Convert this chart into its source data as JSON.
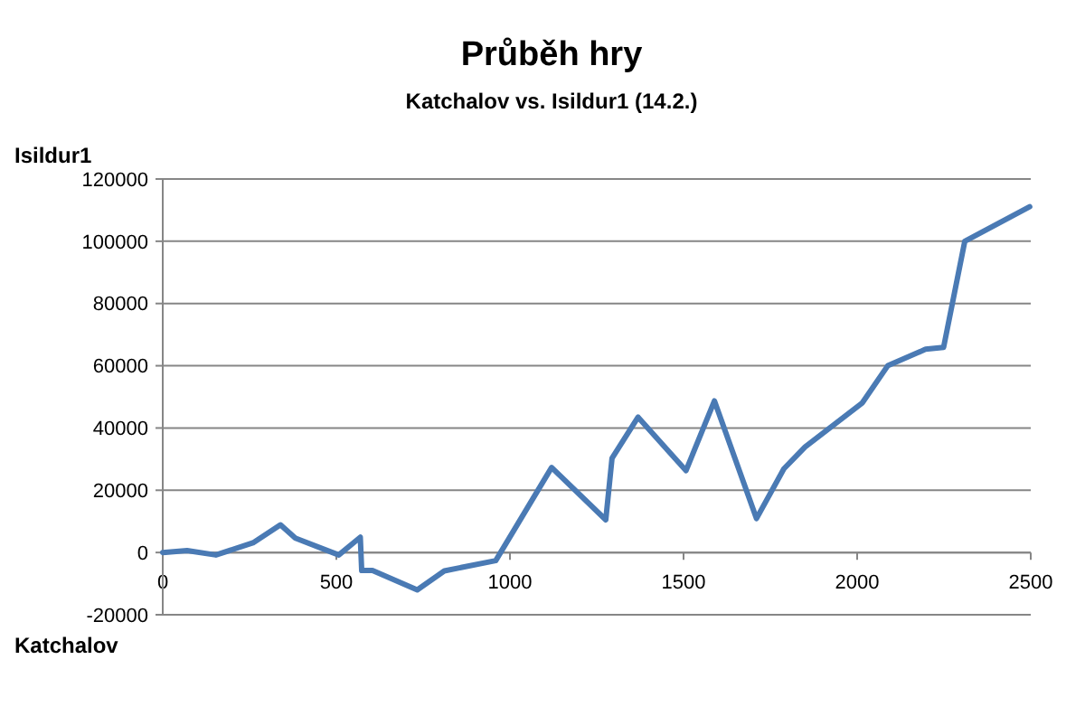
{
  "chart_data": {
    "type": "line",
    "title": "Průběh hry",
    "subtitle": "Katchalov vs. Isildur1 (14.2.)",
    "xlabel": "Katchalov",
    "ylabel": "Isildur1",
    "x": [
      0,
      70,
      153,
      260,
      339,
      382,
      507,
      569,
      573,
      604,
      733,
      811,
      959,
      1120,
      1276,
      1294,
      1369,
      1507,
      1589,
      1710,
      1789,
      1850,
      2015,
      2088,
      2197,
      2249,
      2310,
      2497
    ],
    "series": [
      {
        "color": "#4a7ab4",
        "values": [
          0,
          600,
          -800,
          3100,
          8900,
          4600,
          -800,
          4900,
          -5800,
          -5800,
          -12000,
          -5900,
          -2600,
          27300,
          10500,
          30300,
          43500,
          26300,
          48700,
          10900,
          26900,
          33900,
          48100,
          60000,
          65300,
          65900,
          100000,
          111100
        ]
      }
    ],
    "xlim": [
      0,
      2500
    ],
    "xticks": [
      0,
      500,
      1000,
      1500,
      2000,
      2500
    ],
    "ylim": [
      -20000,
      120000
    ],
    "yticks": [
      -20000,
      0,
      20000,
      40000,
      60000,
      80000,
      100000,
      120000
    ],
    "grid": "y",
    "marker": "none",
    "line_style": "solid"
  }
}
